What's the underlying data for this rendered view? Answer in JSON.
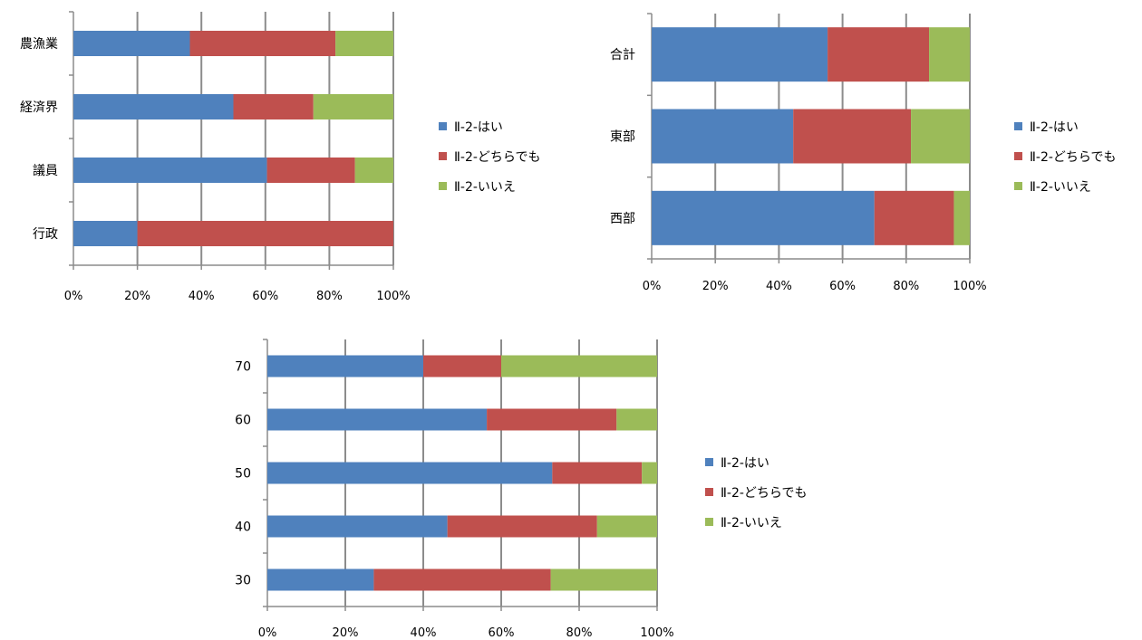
{
  "colors": {
    "yes": "#4f81bd",
    "neutral": "#c0504d",
    "no": "#9bbb59",
    "gridline": "#8c8c8c",
    "axis": "#8c8c8c"
  },
  "chart_data": [
    {
      "type": "bar",
      "orientation": "horizontal",
      "stacked": "percent",
      "categories": [
        "行政",
        "議員",
        "経済界",
        "農漁業"
      ],
      "series": [
        {
          "name": "Ⅱ-2-はい",
          "values": [
            20,
            60.5,
            50,
            36.4
          ]
        },
        {
          "name": "Ⅱ-2-どちらでも",
          "values": [
            80,
            27.5,
            25,
            45.5
          ]
        },
        {
          "name": "Ⅱ-2-いいえ",
          "values": [
            0,
            12,
            25,
            18.1
          ]
        }
      ],
      "x_ticks": [
        "0%",
        "20%",
        "40%",
        "60%",
        "80%",
        "100%"
      ],
      "xlim": [
        0,
        100
      ],
      "grid": true,
      "legend_position": "right"
    },
    {
      "type": "bar",
      "orientation": "horizontal",
      "stacked": "percent",
      "categories": [
        "西部",
        "東部",
        "合計"
      ],
      "series": [
        {
          "name": "Ⅱ-2-はい",
          "values": [
            70,
            44.5,
            55.3
          ]
        },
        {
          "name": "Ⅱ-2-どちらでも",
          "values": [
            25,
            37,
            31.9
          ]
        },
        {
          "name": "Ⅱ-2-いいえ",
          "values": [
            5,
            18.5,
            12.8
          ]
        }
      ],
      "x_ticks": [
        "0%",
        "20%",
        "40%",
        "60%",
        "80%",
        "100%"
      ],
      "xlim": [
        0,
        100
      ],
      "grid": true,
      "legend_position": "right"
    },
    {
      "type": "bar",
      "orientation": "horizontal",
      "stacked": "percent",
      "categories": [
        "30",
        "40",
        "50",
        "60",
        "70"
      ],
      "series": [
        {
          "name": "Ⅱ-2-はい",
          "values": [
            27.3,
            46.2,
            73.1,
            56.3,
            40
          ]
        },
        {
          "name": "Ⅱ-2-どちらでも",
          "values": [
            45.4,
            38.4,
            23,
            33.3,
            20
          ]
        },
        {
          "name": "Ⅱ-2-いいえ",
          "values": [
            27.3,
            15.4,
            3.9,
            10.4,
            40
          ]
        }
      ],
      "x_ticks": [
        "0%",
        "20%",
        "40%",
        "60%",
        "80%",
        "100%"
      ],
      "xlim": [
        0,
        100
      ],
      "grid": true,
      "legend_position": "right"
    }
  ]
}
